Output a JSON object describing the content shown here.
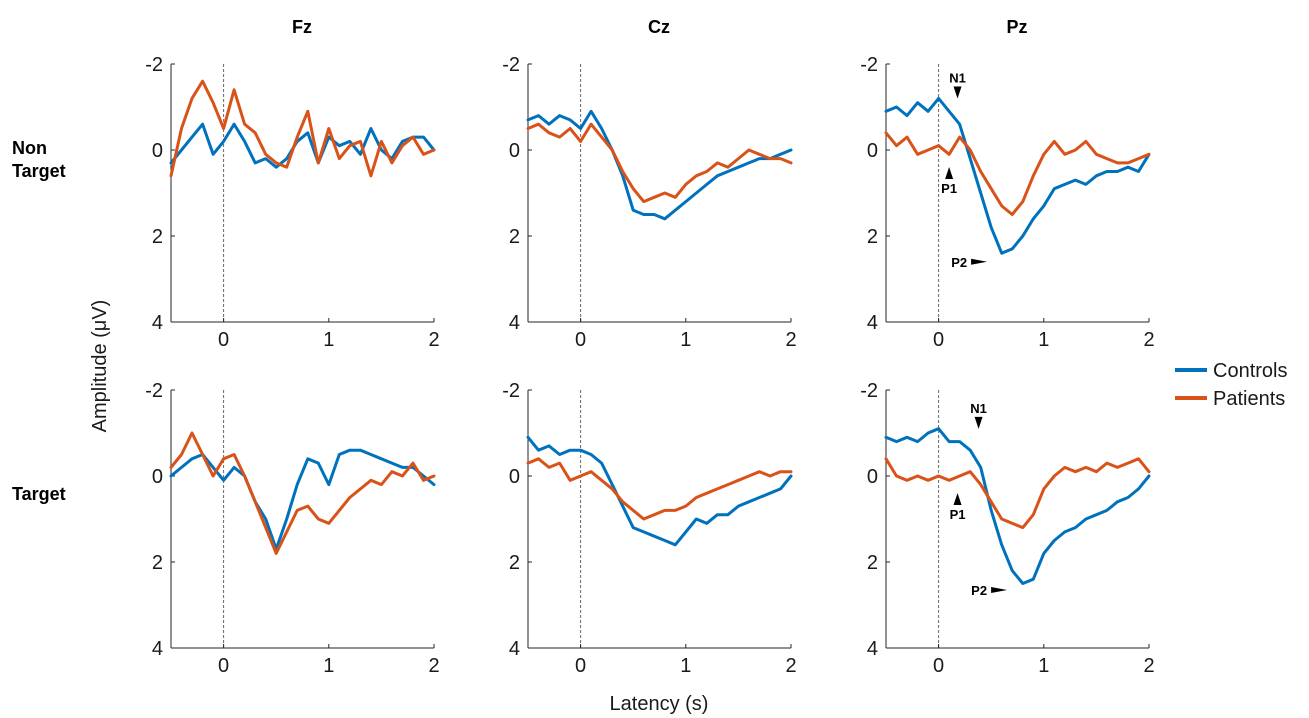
{
  "chart_data": {
    "type": "line",
    "ylabel": "Amplitude (μV)",
    "xlabel": "Latency (s)",
    "xlim": [
      -0.5,
      2
    ],
    "ylim": [
      -2,
      4
    ],
    "y_reversed": true,
    "xticks": [
      "0",
      "1",
      "2"
    ],
    "yticks": [
      "-2",
      "0",
      "2",
      "4"
    ],
    "grid": false,
    "legend_position": "right",
    "colors": {
      "Controls": "#0072BD",
      "Patients": "#D95319"
    },
    "legend": [
      "Controls",
      "Patients"
    ],
    "columns": [
      "Fz",
      "Cz",
      "Pz"
    ],
    "rows": [
      {
        "label_line1": "Non",
        "label_line2": "Target"
      },
      {
        "label_line1": "Target",
        "label_line2": ""
      }
    ],
    "panels": [
      {
        "row": 0,
        "col": 0,
        "series": [
          {
            "name": "Controls",
            "x": [
              -0.5,
              -0.4,
              -0.3,
              -0.2,
              -0.1,
              0,
              0.1,
              0.2,
              0.3,
              0.4,
              0.5,
              0.6,
              0.7,
              0.8,
              0.9,
              1.0,
              1.1,
              1.2,
              1.3,
              1.4,
              1.5,
              1.6,
              1.7,
              1.8,
              1.9,
              2.0
            ],
            "y": [
              0.3,
              0,
              -0.3,
              -0.6,
              0.1,
              -0.2,
              -0.6,
              -0.2,
              0.3,
              0.2,
              0.4,
              0.2,
              -0.2,
              -0.4,
              0.3,
              -0.3,
              -0.1,
              -0.2,
              0.1,
              -0.5,
              0,
              0.2,
              -0.2,
              -0.3,
              -0.3,
              0
            ]
          },
          {
            "name": "Patients",
            "x": [
              -0.5,
              -0.4,
              -0.3,
              -0.2,
              -0.1,
              0,
              0.1,
              0.2,
              0.3,
              0.4,
              0.5,
              0.6,
              0.7,
              0.8,
              0.9,
              1.0,
              1.1,
              1.2,
              1.3,
              1.4,
              1.5,
              1.6,
              1.7,
              1.8,
              1.9,
              2.0
            ],
            "y": [
              0.6,
              -0.5,
              -1.2,
              -1.6,
              -1.1,
              -0.5,
              -1.4,
              -0.6,
              -0.4,
              0.1,
              0.3,
              0.4,
              -0.3,
              -0.9,
              0.3,
              -0.5,
              0.2,
              -0.1,
              -0.2,
              0.6,
              -0.2,
              0.3,
              -0.1,
              -0.3,
              0.1,
              0
            ]
          }
        ]
      },
      {
        "row": 0,
        "col": 1,
        "series": [
          {
            "name": "Controls",
            "x": [
              -0.5,
              -0.4,
              -0.3,
              -0.2,
              -0.1,
              0,
              0.1,
              0.2,
              0.3,
              0.4,
              0.5,
              0.6,
              0.7,
              0.8,
              0.9,
              1.0,
              1.1,
              1.2,
              1.3,
              1.4,
              1.5,
              1.6,
              1.7,
              1.8,
              1.9,
              2.0
            ],
            "y": [
              -0.7,
              -0.8,
              -0.6,
              -0.8,
              -0.7,
              -0.5,
              -0.9,
              -0.5,
              0,
              0.6,
              1.4,
              1.5,
              1.5,
              1.6,
              1.4,
              1.2,
              1.0,
              0.8,
              0.6,
              0.5,
              0.4,
              0.3,
              0.2,
              0.2,
              0.1,
              0
            ]
          },
          {
            "name": "Patients",
            "x": [
              -0.5,
              -0.4,
              -0.3,
              -0.2,
              -0.1,
              0,
              0.1,
              0.2,
              0.3,
              0.4,
              0.5,
              0.6,
              0.7,
              0.8,
              0.9,
              1.0,
              1.1,
              1.2,
              1.3,
              1.4,
              1.5,
              1.6,
              1.7,
              1.8,
              1.9,
              2.0
            ],
            "y": [
              -0.5,
              -0.6,
              -0.4,
              -0.3,
              -0.5,
              -0.2,
              -0.6,
              -0.3,
              0,
              0.5,
              0.9,
              1.2,
              1.1,
              1.0,
              1.1,
              0.8,
              0.6,
              0.5,
              0.3,
              0.4,
              0.2,
              0,
              0.1,
              0.2,
              0.2,
              0.3
            ]
          }
        ]
      },
      {
        "row": 0,
        "col": 2,
        "series": [
          {
            "name": "Controls",
            "x": [
              -0.5,
              -0.4,
              -0.3,
              -0.2,
              -0.1,
              0,
              0.1,
              0.2,
              0.3,
              0.4,
              0.5,
              0.6,
              0.7,
              0.8,
              0.9,
              1.0,
              1.1,
              1.2,
              1.3,
              1.4,
              1.5,
              1.6,
              1.7,
              1.8,
              1.9,
              2.0
            ],
            "y": [
              -0.9,
              -1.0,
              -0.8,
              -1.1,
              -0.9,
              -1.2,
              -0.9,
              -0.6,
              0.2,
              1.0,
              1.8,
              2.4,
              2.3,
              2.0,
              1.6,
              1.3,
              0.9,
              0.8,
              0.7,
              0.8,
              0.6,
              0.5,
              0.5,
              0.4,
              0.5,
              0.1
            ]
          },
          {
            "name": "Patients",
            "x": [
              -0.5,
              -0.4,
              -0.3,
              -0.2,
              -0.1,
              0,
              0.1,
              0.2,
              0.3,
              0.4,
              0.5,
              0.6,
              0.7,
              0.8,
              0.9,
              1.0,
              1.1,
              1.2,
              1.3,
              1.4,
              1.5,
              1.6,
              1.7,
              1.8,
              1.9,
              2.0
            ],
            "y": [
              -0.4,
              -0.1,
              -0.3,
              0.1,
              0,
              -0.1,
              0.1,
              -0.3,
              0,
              0.5,
              0.9,
              1.3,
              1.5,
              1.2,
              0.6,
              0.1,
              -0.2,
              0.1,
              0,
              -0.2,
              0.1,
              0.2,
              0.3,
              0.3,
              0.2,
              0.1
            ]
          }
        ]
      },
      {
        "row": 1,
        "col": 0,
        "series": [
          {
            "name": "Controls",
            "x": [
              -0.5,
              -0.4,
              -0.3,
              -0.2,
              -0.1,
              0,
              0.1,
              0.2,
              0.3,
              0.4,
              0.5,
              0.6,
              0.7,
              0.8,
              0.9,
              1.0,
              1.1,
              1.2,
              1.3,
              1.4,
              1.5,
              1.6,
              1.7,
              1.8,
              1.9,
              2.0
            ],
            "y": [
              0,
              -0.2,
              -0.4,
              -0.5,
              -0.2,
              0.1,
              -0.2,
              0,
              0.6,
              1.0,
              1.7,
              1.0,
              0.2,
              -0.4,
              -0.3,
              0.2,
              -0.5,
              -0.6,
              -0.6,
              -0.5,
              -0.4,
              -0.3,
              -0.2,
              -0.2,
              0,
              0.2
            ]
          },
          {
            "name": "Patients",
            "x": [
              -0.5,
              -0.4,
              -0.3,
              -0.2,
              -0.1,
              0,
              0.1,
              0.2,
              0.3,
              0.4,
              0.5,
              0.6,
              0.7,
              0.8,
              0.9,
              1.0,
              1.1,
              1.2,
              1.3,
              1.4,
              1.5,
              1.6,
              1.7,
              1.8,
              1.9,
              2.0
            ],
            "y": [
              -0.2,
              -0.5,
              -1.0,
              -0.5,
              0,
              -0.4,
              -0.5,
              0,
              0.6,
              1.2,
              1.8,
              1.3,
              0.8,
              0.7,
              1.0,
              1.1,
              0.8,
              0.5,
              0.3,
              0.1,
              0.2,
              -0.1,
              0,
              -0.3,
              0.1,
              0
            ]
          }
        ]
      },
      {
        "row": 1,
        "col": 1,
        "series": [
          {
            "name": "Controls",
            "x": [
              -0.5,
              -0.4,
              -0.3,
              -0.2,
              -0.1,
              0,
              0.1,
              0.2,
              0.3,
              0.4,
              0.5,
              0.6,
              0.7,
              0.8,
              0.9,
              1.0,
              1.1,
              1.2,
              1.3,
              1.4,
              1.5,
              1.6,
              1.7,
              1.8,
              1.9,
              2.0
            ],
            "y": [
              -0.9,
              -0.6,
              -0.7,
              -0.5,
              -0.6,
              -0.6,
              -0.5,
              -0.3,
              0.2,
              0.7,
              1.2,
              1.3,
              1.4,
              1.5,
              1.6,
              1.3,
              1.0,
              1.1,
              0.9,
              0.9,
              0.7,
              0.6,
              0.5,
              0.4,
              0.3,
              0
            ]
          },
          {
            "name": "Patients",
            "x": [
              -0.5,
              -0.4,
              -0.3,
              -0.2,
              -0.1,
              0,
              0.1,
              0.2,
              0.3,
              0.4,
              0.5,
              0.6,
              0.7,
              0.8,
              0.9,
              1.0,
              1.1,
              1.2,
              1.3,
              1.4,
              1.5,
              1.6,
              1.7,
              1.8,
              1.9,
              2.0
            ],
            "y": [
              -0.3,
              -0.4,
              -0.2,
              -0.3,
              0.1,
              0,
              -0.1,
              0.1,
              0.3,
              0.6,
              0.8,
              1.0,
              0.9,
              0.8,
              0.8,
              0.7,
              0.5,
              0.4,
              0.3,
              0.2,
              0.1,
              0,
              -0.1,
              0,
              -0.1,
              -0.1
            ]
          }
        ]
      },
      {
        "row": 1,
        "col": 2,
        "series": [
          {
            "name": "Controls",
            "x": [
              -0.5,
              -0.4,
              -0.3,
              -0.2,
              -0.1,
              0,
              0.1,
              0.2,
              0.3,
              0.4,
              0.5,
              0.6,
              0.7,
              0.8,
              0.9,
              1.0,
              1.1,
              1.2,
              1.3,
              1.4,
              1.5,
              1.6,
              1.7,
              1.8,
              1.9,
              2.0
            ],
            "y": [
              -0.9,
              -0.8,
              -0.9,
              -0.8,
              -1.0,
              -1.1,
              -0.8,
              -0.8,
              -0.6,
              -0.2,
              0.8,
              1.6,
              2.2,
              2.5,
              2.4,
              1.8,
              1.5,
              1.3,
              1.2,
              1.0,
              0.9,
              0.8,
              0.6,
              0.5,
              0.3,
              0
            ]
          },
          {
            "name": "Patients",
            "x": [
              -0.5,
              -0.4,
              -0.3,
              -0.2,
              -0.1,
              0,
              0.1,
              0.2,
              0.3,
              0.4,
              0.5,
              0.6,
              0.7,
              0.8,
              0.9,
              1.0,
              1.1,
              1.2,
              1.3,
              1.4,
              1.5,
              1.6,
              1.7,
              1.8,
              1.9,
              2.0
            ],
            "y": [
              -0.4,
              0,
              0.1,
              0,
              0.1,
              0,
              0.1,
              0,
              -0.1,
              0.2,
              0.6,
              1.0,
              1.1,
              1.2,
              0.9,
              0.3,
              0,
              -0.2,
              -0.1,
              -0.2,
              -0.1,
              -0.3,
              -0.2,
              -0.3,
              -0.4,
              -0.1
            ]
          }
        ]
      }
    ],
    "annotations": [
      {
        "panel": 2,
        "label": "N1",
        "x": 0.18,
        "y": -1.15,
        "pointer": "down"
      },
      {
        "panel": 2,
        "label": "P1",
        "x": 0.1,
        "y": 0.35,
        "pointer": "up"
      },
      {
        "panel": 2,
        "label": "P2",
        "x": 0.48,
        "y": 2.6,
        "pointer": "right"
      },
      {
        "panel": 5,
        "label": "N1",
        "x": 0.38,
        "y": -1.05,
        "pointer": "down"
      },
      {
        "panel": 5,
        "label": "P1",
        "x": 0.18,
        "y": 0.35,
        "pointer": "up"
      },
      {
        "panel": 5,
        "label": "P2",
        "x": 0.67,
        "y": 2.65,
        "pointer": "right"
      }
    ]
  }
}
